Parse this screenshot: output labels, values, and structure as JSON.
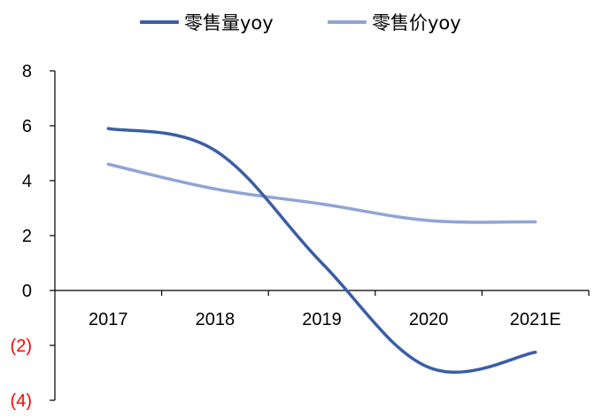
{
  "chart_data": {
    "type": "line",
    "categories": [
      "2017",
      "2018",
      "2019",
      "2020",
      "2021E"
    ],
    "series": [
      {
        "name": "零售量yoy",
        "color": "#3a5ea6",
        "values": [
          5.9,
          5.1,
          1.0,
          -2.8,
          -2.25
        ]
      },
      {
        "name": "零售价yoy",
        "color": "#8fa4d6",
        "values": [
          4.6,
          3.7,
          3.15,
          2.55,
          2.5
        ]
      }
    ],
    "y_ticks": [
      {
        "value": 8,
        "label": "8",
        "color": "#000000"
      },
      {
        "value": 6,
        "label": "6",
        "color": "#000000"
      },
      {
        "value": 4,
        "label": "4",
        "color": "#000000"
      },
      {
        "value": 2,
        "label": "2",
        "color": "#000000"
      },
      {
        "value": 0,
        "label": "0",
        "color": "#000000"
      },
      {
        "value": -2,
        "label": "(2)",
        "color": "#ff0000"
      },
      {
        "value": -4,
        "label": "(4)",
        "color": "#ff0000"
      }
    ],
    "ylim": [
      -4,
      8
    ],
    "grid": false,
    "legend_position": "top"
  }
}
